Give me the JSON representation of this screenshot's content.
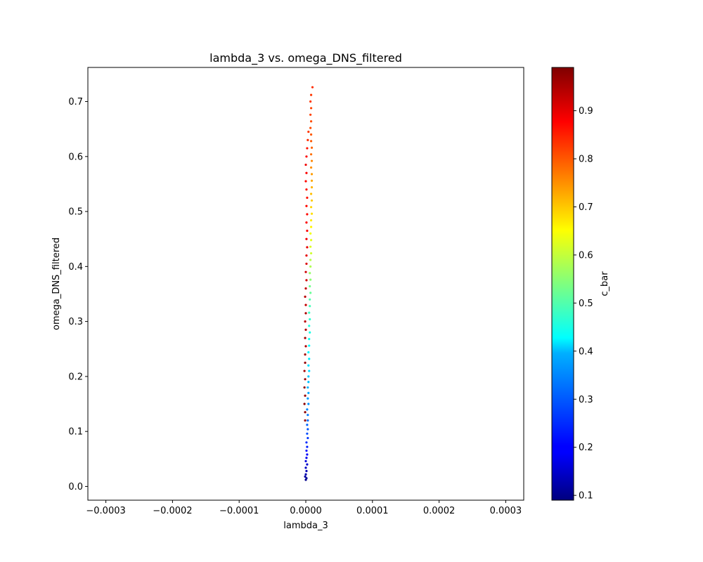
{
  "chart_data": {
    "type": "scatter",
    "title": "lambda_3 vs. omega_DNS_filtered",
    "xlabel": "lambda_3",
    "ylabel": "omega_DNS_filtered",
    "xlim": [
      -0.000327,
      0.000327
    ],
    "ylim": [
      -0.025,
      0.762
    ],
    "xticks": [
      -0.0003,
      -0.0002,
      -0.0001,
      0.0,
      0.0001,
      0.0002,
      0.0003
    ],
    "xtick_labels": [
      "−0.0003",
      "−0.0002",
      "−0.0001",
      "0.0000",
      "0.0001",
      "0.0002",
      "0.0003"
    ],
    "yticks": [
      0.0,
      0.1,
      0.2,
      0.3,
      0.4,
      0.5,
      0.6,
      0.7
    ],
    "ytick_labels": [
      "0.0",
      "0.1",
      "0.2",
      "0.3",
      "0.4",
      "0.5",
      "0.6",
      "0.7"
    ],
    "grid": false,
    "colormap": "jet",
    "colorbar": {
      "label": "c_bar",
      "range": [
        0.09,
        0.99
      ],
      "ticks": [
        0.1,
        0.2,
        0.3,
        0.4,
        0.5,
        0.6,
        0.7,
        0.8,
        0.9
      ],
      "tick_labels": [
        "0.1",
        "0.2",
        "0.3",
        "0.4",
        "0.5",
        "0.6",
        "0.7",
        "0.8",
        "0.9"
      ]
    },
    "series": [
      {
        "points_x_y_c": [
          [
            0.0,
            0.012,
            0.1
          ],
          [
            1e-06,
            0.015,
            0.11
          ],
          [
            -1e-06,
            0.018,
            0.12
          ],
          [
            0.0,
            0.022,
            0.13
          ],
          [
            1e-06,
            0.028,
            0.14
          ],
          [
            0.0,
            0.034,
            0.15
          ],
          [
            2e-06,
            0.04,
            0.16
          ],
          [
            0.0,
            0.046,
            0.17
          ],
          [
            1e-06,
            0.052,
            0.19
          ],
          [
            2e-06,
            0.058,
            0.2
          ],
          [
            1e-06,
            0.065,
            0.21
          ],
          [
            2e-06,
            0.072,
            0.23
          ],
          [
            1e-06,
            0.08,
            0.24
          ],
          [
            3e-06,
            0.088,
            0.25
          ],
          [
            2e-06,
            0.096,
            0.27
          ],
          [
            3e-06,
            0.104,
            0.28
          ],
          [
            2e-06,
            0.112,
            0.29
          ],
          [
            3e-06,
            0.12,
            0.3
          ],
          [
            3e-06,
            0.13,
            0.31
          ],
          [
            2e-06,
            0.14,
            0.32
          ],
          [
            4e-06,
            0.15,
            0.33
          ],
          [
            3e-06,
            0.16,
            0.34
          ],
          [
            4e-06,
            0.17,
            0.35
          ],
          [
            3e-06,
            0.18,
            0.36
          ],
          [
            4e-06,
            0.19,
            0.37
          ],
          [
            4e-06,
            0.2,
            0.38
          ],
          [
            5e-06,
            0.21,
            0.39
          ],
          [
            4e-06,
            0.22,
            0.4
          ],
          [
            5e-06,
            0.232,
            0.41
          ],
          [
            4e-06,
            0.244,
            0.42
          ],
          [
            5e-06,
            0.256,
            0.43
          ],
          [
            5e-06,
            0.268,
            0.44
          ],
          [
            6e-06,
            0.28,
            0.45
          ],
          [
            5e-06,
            0.292,
            0.46
          ],
          [
            6e-06,
            0.304,
            0.47
          ],
          [
            5e-06,
            0.316,
            0.48
          ],
          [
            6e-06,
            0.328,
            0.49
          ],
          [
            6e-06,
            0.34,
            0.5
          ],
          [
            7e-06,
            0.352,
            0.52
          ],
          [
            6e-06,
            0.364,
            0.53
          ],
          [
            7e-06,
            0.376,
            0.55
          ],
          [
            6e-06,
            0.388,
            0.56
          ],
          [
            7e-06,
            0.4,
            0.58
          ],
          [
            7e-06,
            0.412,
            0.59
          ],
          [
            8e-06,
            0.424,
            0.61
          ],
          [
            7e-06,
            0.436,
            0.62
          ],
          [
            8e-06,
            0.448,
            0.63
          ],
          [
            7e-06,
            0.46,
            0.64
          ],
          [
            8e-06,
            0.472,
            0.66
          ],
          [
            8e-06,
            0.484,
            0.67
          ],
          [
            9e-06,
            0.496,
            0.68
          ],
          [
            8e-06,
            0.508,
            0.69
          ],
          [
            9e-06,
            0.52,
            0.7
          ],
          [
            8e-06,
            0.532,
            0.71
          ],
          [
            9e-06,
            0.544,
            0.72
          ],
          [
            9e-06,
            0.556,
            0.73
          ],
          [
            9e-06,
            0.568,
            0.74
          ],
          [
            8e-06,
            0.58,
            0.75
          ],
          [
            9e-06,
            0.592,
            0.76
          ],
          [
            8e-06,
            0.604,
            0.78
          ],
          [
            9e-06,
            0.616,
            0.79
          ],
          [
            8e-06,
            0.628,
            0.8
          ],
          [
            8e-06,
            0.64,
            0.8
          ],
          [
            7e-06,
            0.652,
            0.81
          ],
          [
            8e-06,
            0.664,
            0.81
          ],
          [
            7e-06,
            0.676,
            0.82
          ],
          [
            8e-06,
            0.688,
            0.82
          ],
          [
            7e-06,
            0.7,
            0.83
          ],
          [
            8e-06,
            0.712,
            0.83
          ],
          [
            1e-05,
            0.726,
            0.84
          ],
          [
            -1e-06,
            0.12,
            0.97
          ],
          [
            -1e-06,
            0.135,
            0.98
          ],
          [
            -2e-06,
            0.15,
            0.98
          ],
          [
            -1e-06,
            0.165,
            0.97
          ],
          [
            -2e-06,
            0.18,
            0.98
          ],
          [
            -1e-06,
            0.195,
            0.97
          ],
          [
            -2e-06,
            0.21,
            0.96
          ],
          [
            -1e-06,
            0.225,
            0.97
          ],
          [
            -1e-06,
            0.24,
            0.96
          ],
          [
            0.0,
            0.255,
            0.95
          ],
          [
            -1e-06,
            0.27,
            0.96
          ],
          [
            0.0,
            0.285,
            0.95
          ],
          [
            -1e-06,
            0.3,
            0.94
          ],
          [
            0.0,
            0.315,
            0.95
          ],
          [
            0.0,
            0.33,
            0.93
          ],
          [
            -1e-06,
            0.345,
            0.94
          ],
          [
            0.0,
            0.36,
            0.93
          ],
          [
            1e-06,
            0.375,
            0.92
          ],
          [
            0.0,
            0.39,
            0.92
          ],
          [
            1e-06,
            0.405,
            0.91
          ],
          [
            1e-06,
            0.42,
            0.9
          ],
          [
            2e-06,
            0.435,
            0.9
          ],
          [
            1e-06,
            0.45,
            0.89
          ],
          [
            2e-06,
            0.465,
            0.88
          ],
          [
            1e-06,
            0.48,
            0.88
          ],
          [
            2e-06,
            0.495,
            0.87
          ],
          [
            1e-06,
            0.51,
            0.87
          ],
          [
            2e-06,
            0.525,
            0.86
          ],
          [
            1e-06,
            0.54,
            0.86
          ],
          [
            0.0,
            0.555,
            0.87
          ],
          [
            1e-06,
            0.57,
            0.88
          ],
          [
            0.0,
            0.585,
            0.89
          ],
          [
            1e-06,
            0.6,
            0.88
          ],
          [
            2e-06,
            0.615,
            0.86
          ],
          [
            3e-06,
            0.63,
            0.84
          ],
          [
            4e-06,
            0.645,
            0.83
          ]
        ]
      }
    ]
  }
}
